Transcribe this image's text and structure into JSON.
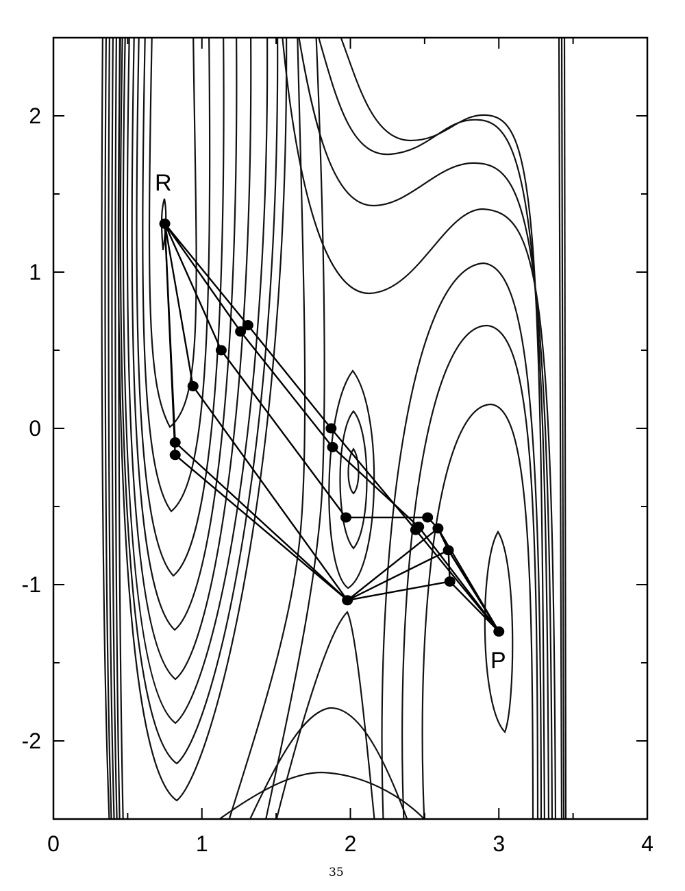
{
  "chart_data": {
    "type": "contour",
    "title": "",
    "xlabel": "",
    "ylabel": "",
    "xlim": [
      0,
      4
    ],
    "ylim": [
      -2.5,
      2.5
    ],
    "x_ticks": [
      "0",
      "1",
      "2",
      "3",
      "4"
    ],
    "y_ticks": [
      "-2",
      "-1",
      "0",
      "1",
      "2"
    ],
    "grid": false,
    "point_labels": {
      "R": "R",
      "P": "P"
    },
    "points": {
      "R": [
        0.75,
        1.31
      ],
      "P": [
        3.0,
        -1.3
      ],
      "S": [
        1.98,
        -1.1
      ],
      "a1": [
        1.31,
        0.66
      ],
      "a2": [
        1.26,
        0.62
      ],
      "a3": [
        1.13,
        0.5
      ],
      "a4": [
        0.94,
        0.27
      ],
      "a5": [
        0.82,
        -0.09
      ],
      "a6": [
        0.82,
        -0.17
      ],
      "b1": [
        1.87,
        0.0
      ],
      "b2": [
        1.88,
        -0.12
      ],
      "b3": [
        1.97,
        -0.57
      ],
      "c1": [
        2.52,
        -0.57
      ],
      "c2": [
        2.46,
        -0.63
      ],
      "c3": [
        2.44,
        -0.65
      ],
      "c4": [
        2.59,
        -0.64
      ],
      "c5": [
        2.66,
        -0.78
      ],
      "c6": [
        2.67,
        -0.98
      ]
    },
    "paths": [
      [
        "R",
        "a1",
        "b1",
        "c3",
        "P"
      ],
      [
        "R",
        "a2",
        "b2",
        "c2",
        "P"
      ],
      [
        "R",
        "a3",
        "b3",
        "c1",
        "c4",
        "c5",
        "P"
      ],
      [
        "R",
        "a4",
        "S",
        "c6",
        "P"
      ],
      [
        "R",
        "a5",
        "S",
        "c5",
        "P"
      ],
      [
        "R",
        "a6",
        "S",
        "c4",
        "P"
      ],
      [
        "c6",
        "c5"
      ]
    ]
  },
  "page_number": "35"
}
